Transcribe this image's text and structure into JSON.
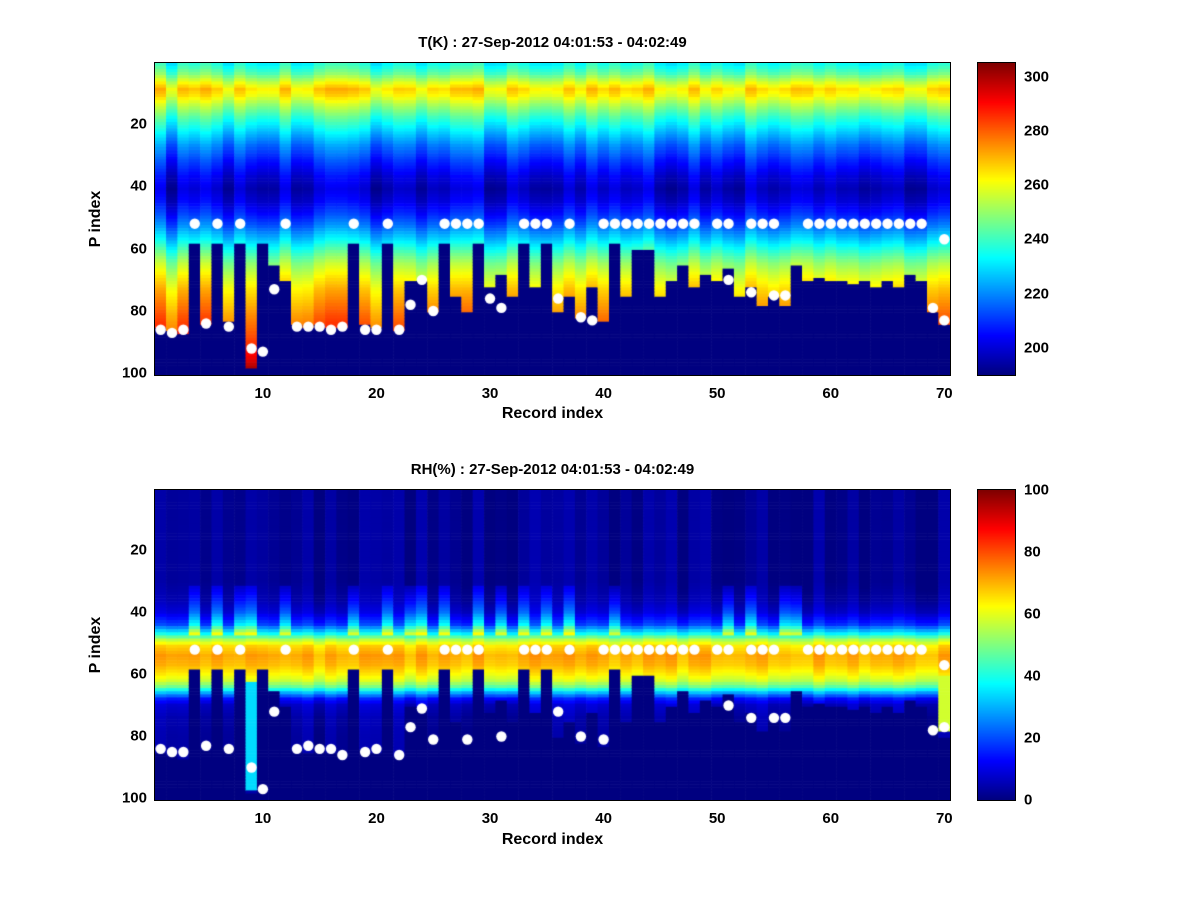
{
  "figure": {
    "background": "#ffffff",
    "dot_color": "#ffffff"
  },
  "chart_data": [
    {
      "type": "heatmap",
      "colormap": "jet",
      "title": "T(K) : 27-Sep-2012 04:01:53 - 04:02:49",
      "xlabel": "Record index",
      "ylabel": "P index",
      "x_ticks": [
        10,
        20,
        30,
        40,
        50,
        60,
        70
      ],
      "y_ticks": [
        20,
        40,
        60,
        80,
        100
      ],
      "x_range": [
        0.5,
        70.5
      ],
      "y_range": [
        0.5,
        100.5
      ],
      "y_axis_reversed": true,
      "n_records": 70,
      "n_levels": 100,
      "value_range": [
        190,
        305
      ],
      "colorbar": {
        "range": [
          190,
          305
        ],
        "ticks": [
          200,
          220,
          240,
          260,
          280,
          300
        ]
      },
      "noise": 6,
      "profile": [
        [
          0,
          232
        ],
        [
          4,
          244
        ],
        [
          7,
          258
        ],
        [
          9,
          266
        ],
        [
          11,
          262
        ],
        [
          14,
          252
        ],
        [
          18,
          240
        ],
        [
          22,
          230
        ],
        [
          27,
          218
        ],
        [
          32,
          209
        ],
        [
          37,
          201
        ],
        [
          41,
          197
        ],
        [
          45,
          201
        ],
        [
          49,
          208
        ],
        [
          53,
          217
        ],
        [
          57,
          228
        ],
        [
          61,
          240
        ],
        [
          65,
          251
        ],
        [
          69,
          259
        ],
        [
          73,
          266
        ],
        [
          77,
          271
        ],
        [
          81,
          276
        ],
        [
          86,
          281
        ],
        [
          91,
          287
        ],
        [
          95,
          294
        ],
        [
          98,
          301
        ],
        [
          100,
          302
        ]
      ],
      "mask_top": [
        85,
        86,
        87,
        58,
        84,
        58,
        83,
        58,
        98,
        58,
        65,
        70,
        84,
        85,
        84,
        85,
        85,
        58,
        84,
        85,
        58,
        86,
        70,
        70,
        80,
        58,
        75,
        80,
        58,
        72,
        68,
        75,
        58,
        72,
        58,
        80,
        75,
        82,
        72,
        83,
        58,
        75,
        60,
        60,
        75,
        70,
        65,
        72,
        68,
        70,
        66,
        75,
        72,
        78,
        75,
        78,
        65,
        70,
        69,
        70,
        70,
        71,
        70,
        72,
        70,
        72,
        68,
        70,
        80,
        84
      ],
      "specials": [],
      "dots": [
        [
          4,
          52
        ],
        [
          6,
          52
        ],
        [
          8,
          52
        ],
        [
          12,
          52
        ],
        [
          18,
          52
        ],
        [
          21,
          52
        ],
        [
          26,
          52
        ],
        [
          27,
          52
        ],
        [
          28,
          52
        ],
        [
          29,
          52
        ],
        [
          33,
          52
        ],
        [
          34,
          52
        ],
        [
          35,
          52
        ],
        [
          37,
          52
        ],
        [
          40,
          52
        ],
        [
          41,
          52
        ],
        [
          42,
          52
        ],
        [
          43,
          52
        ],
        [
          44,
          52
        ],
        [
          45,
          52
        ],
        [
          46,
          52
        ],
        [
          47,
          52
        ],
        [
          48,
          52
        ],
        [
          50,
          52
        ],
        [
          51,
          52
        ],
        [
          53,
          52
        ],
        [
          54,
          52
        ],
        [
          55,
          52
        ],
        [
          58,
          52
        ],
        [
          59,
          52
        ],
        [
          60,
          52
        ],
        [
          61,
          52
        ],
        [
          62,
          52
        ],
        [
          63,
          52
        ],
        [
          64,
          52
        ],
        [
          65,
          52
        ],
        [
          66,
          52
        ],
        [
          67,
          52
        ],
        [
          68,
          52
        ],
        [
          1,
          86
        ],
        [
          2,
          87
        ],
        [
          3,
          86
        ],
        [
          5,
          84
        ],
        [
          7,
          85
        ],
        [
          9,
          92
        ],
        [
          10,
          93
        ],
        [
          11,
          73
        ],
        [
          13,
          85
        ],
        [
          14,
          85
        ],
        [
          15,
          85
        ],
        [
          16,
          86
        ],
        [
          17,
          85
        ],
        [
          19,
          86
        ],
        [
          20,
          86
        ],
        [
          22,
          86
        ],
        [
          23,
          78
        ],
        [
          24,
          70
        ],
        [
          25,
          80
        ],
        [
          30,
          76
        ],
        [
          31,
          79
        ],
        [
          36,
          76
        ],
        [
          38,
          82
        ],
        [
          39,
          83
        ],
        [
          51,
          70
        ],
        [
          53,
          74
        ],
        [
          55,
          75
        ],
        [
          56,
          75
        ],
        [
          69,
          79
        ],
        [
          70,
          57
        ],
        [
          70,
          83
        ]
      ]
    },
    {
      "type": "heatmap",
      "colormap": "jet",
      "title": "RH(%) : 27-Sep-2012 04:01:53 - 04:02:49",
      "xlabel": "Record index",
      "ylabel": "P index",
      "x_ticks": [
        10,
        20,
        30,
        40,
        50,
        60,
        70
      ],
      "y_ticks": [
        20,
        40,
        60,
        80,
        100
      ],
      "x_range": [
        0.5,
        70.5
      ],
      "y_range": [
        0.5,
        100.5
      ],
      "y_axis_reversed": true,
      "n_records": 70,
      "n_levels": 100,
      "value_range": [
        0,
        100
      ],
      "colorbar": {
        "range": [
          0,
          100
        ],
        "ticks": [
          0,
          20,
          40,
          60,
          80,
          100
        ]
      },
      "noise": 3,
      "profile": [
        [
          0,
          2
        ],
        [
          30,
          2
        ],
        [
          36,
          4
        ],
        [
          40,
          8
        ],
        [
          44,
          18
        ],
        [
          47,
          38
        ],
        [
          49,
          55
        ],
        [
          51,
          66
        ],
        [
          54,
          71
        ],
        [
          57,
          69
        ],
        [
          60,
          63
        ],
        [
          62,
          58
        ],
        [
          64,
          48
        ],
        [
          66,
          30
        ],
        [
          68,
          14
        ],
        [
          70,
          7
        ],
        [
          74,
          4
        ],
        [
          80,
          3
        ],
        [
          100,
          2
        ]
      ],
      "mask_top": [
        85,
        86,
        87,
        58,
        84,
        58,
        83,
        58,
        98,
        58,
        65,
        70,
        84,
        85,
        84,
        85,
        85,
        58,
        84,
        85,
        58,
        86,
        70,
        70,
        80,
        58,
        75,
        80,
        58,
        72,
        68,
        75,
        58,
        72,
        58,
        80,
        75,
        82,
        72,
        83,
        58,
        75,
        60,
        60,
        75,
        70,
        65,
        72,
        68,
        70,
        66,
        75,
        72,
        78,
        75,
        78,
        65,
        70,
        69,
        70,
        70,
        71,
        70,
        72,
        70,
        72,
        68,
        70,
        80,
        80
      ],
      "streaks": {
        "records": [
          4,
          6,
          8,
          9,
          12,
          18,
          21,
          23,
          24,
          26,
          29,
          31,
          33,
          35,
          37,
          41,
          51,
          53,
          56,
          57
        ],
        "p_range": [
          32,
          47
        ],
        "boost": 22
      },
      "specials": [
        {
          "record": 9,
          "p_from": 63,
          "p_to": 97,
          "value": 34
        },
        {
          "record": 70,
          "p_from": 61,
          "p_to": 78,
          "value": 58
        }
      ],
      "dots": [
        [
          4,
          52
        ],
        [
          6,
          52
        ],
        [
          8,
          52
        ],
        [
          12,
          52
        ],
        [
          18,
          52
        ],
        [
          21,
          52
        ],
        [
          26,
          52
        ],
        [
          27,
          52
        ],
        [
          28,
          52
        ],
        [
          29,
          52
        ],
        [
          33,
          52
        ],
        [
          34,
          52
        ],
        [
          35,
          52
        ],
        [
          37,
          52
        ],
        [
          40,
          52
        ],
        [
          41,
          52
        ],
        [
          42,
          52
        ],
        [
          43,
          52
        ],
        [
          44,
          52
        ],
        [
          45,
          52
        ],
        [
          46,
          52
        ],
        [
          47,
          52
        ],
        [
          48,
          52
        ],
        [
          50,
          52
        ],
        [
          51,
          52
        ],
        [
          53,
          52
        ],
        [
          54,
          52
        ],
        [
          55,
          52
        ],
        [
          58,
          52
        ],
        [
          59,
          52
        ],
        [
          60,
          52
        ],
        [
          61,
          52
        ],
        [
          62,
          52
        ],
        [
          63,
          52
        ],
        [
          64,
          52
        ],
        [
          65,
          52
        ],
        [
          66,
          52
        ],
        [
          67,
          52
        ],
        [
          68,
          52
        ],
        [
          1,
          84
        ],
        [
          2,
          85
        ],
        [
          3,
          85
        ],
        [
          5,
          83
        ],
        [
          7,
          84
        ],
        [
          9,
          90
        ],
        [
          10,
          97
        ],
        [
          11,
          72
        ],
        [
          13,
          84
        ],
        [
          14,
          83
        ],
        [
          15,
          84
        ],
        [
          16,
          84
        ],
        [
          17,
          86
        ],
        [
          19,
          85
        ],
        [
          20,
          84
        ],
        [
          22,
          86
        ],
        [
          23,
          77
        ],
        [
          24,
          71
        ],
        [
          25,
          81
        ],
        [
          28,
          81
        ],
        [
          31,
          80
        ],
        [
          36,
          72
        ],
        [
          38,
          80
        ],
        [
          40,
          81
        ],
        [
          51,
          70
        ],
        [
          53,
          74
        ],
        [
          55,
          74
        ],
        [
          56,
          74
        ],
        [
          69,
          78
        ],
        [
          70,
          57
        ],
        [
          70,
          77
        ]
      ]
    }
  ]
}
